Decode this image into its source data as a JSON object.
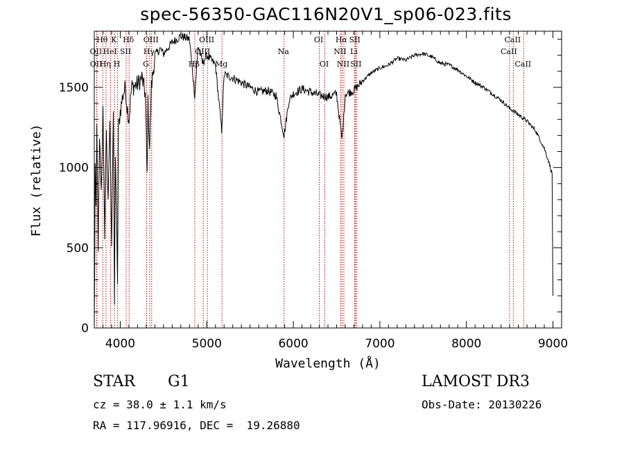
{
  "chart_data": {
    "type": "line",
    "title": "spec-56350-GAC116N20V1_sp06-023.fits",
    "xlabel": "Wavelength (Å)",
    "ylabel": "Flux (relative)",
    "xlim": [
      3700,
      9100
    ],
    "ylim": [
      0,
      1850
    ],
    "xticks": [
      4000,
      5000,
      6000,
      7000,
      8000,
      9000
    ],
    "yticks": [
      0,
      500,
      1000,
      1500
    ],
    "grid": false,
    "spectrum_anchors": [
      [
        3700,
        0
      ],
      [
        3705,
        350
      ],
      [
        3710,
        1050
      ],
      [
        3720,
        700
      ],
      [
        3730,
        1250
      ],
      [
        3745,
        450
      ],
      [
        3760,
        1200
      ],
      [
        3780,
        850
      ],
      [
        3800,
        1350
      ],
      [
        3820,
        600
      ],
      [
        3840,
        1250
      ],
      [
        3860,
        750
      ],
      [
        3880,
        1300
      ],
      [
        3900,
        550
      ],
      [
        3920,
        1350
      ],
      [
        3933,
        150
      ],
      [
        3945,
        1100
      ],
      [
        3968,
        300
      ],
      [
        3980,
        1250
      ],
      [
        4000,
        1350
      ],
      [
        4030,
        1450
      ],
      [
        4060,
        1500
      ],
      [
        4080,
        1380
      ],
      [
        4101,
        1300
      ],
      [
        4130,
        1500
      ],
      [
        4200,
        1520
      ],
      [
        4250,
        1560
      ],
      [
        4290,
        1460
      ],
      [
        4300,
        1200
      ],
      [
        4310,
        950
      ],
      [
        4320,
        1400
      ],
      [
        4340,
        1120
      ],
      [
        4360,
        1500
      ],
      [
        4400,
        1700
      ],
      [
        4460,
        1740
      ],
      [
        4500,
        1710
      ],
      [
        4600,
        1780
      ],
      [
        4700,
        1820
      ],
      [
        4800,
        1800
      ],
      [
        4861,
        1450
      ],
      [
        4900,
        1760
      ],
      [
        4950,
        1650
      ],
      [
        5000,
        1700
      ],
      [
        5100,
        1640
      ],
      [
        5172,
        1230
      ],
      [
        5200,
        1580
      ],
      [
        5300,
        1560
      ],
      [
        5400,
        1530
      ],
      [
        5500,
        1500
      ],
      [
        5600,
        1470
      ],
      [
        5700,
        1480
      ],
      [
        5800,
        1450
      ],
      [
        5893,
        1200
      ],
      [
        5950,
        1420
      ],
      [
        6000,
        1460
      ],
      [
        6100,
        1490
      ],
      [
        6200,
        1470
      ],
      [
        6300,
        1450
      ],
      [
        6400,
        1440
      ],
      [
        6500,
        1460
      ],
      [
        6563,
        1170
      ],
      [
        6600,
        1460
      ],
      [
        6700,
        1480
      ],
      [
        6800,
        1540
      ],
      [
        6900,
        1590
      ],
      [
        7000,
        1620
      ],
      [
        7100,
        1640
      ],
      [
        7200,
        1680
      ],
      [
        7300,
        1670
      ],
      [
        7400,
        1700
      ],
      [
        7500,
        1710
      ],
      [
        7600,
        1690
      ],
      [
        7700,
        1650
      ],
      [
        7800,
        1640
      ],
      [
        7900,
        1610
      ],
      [
        8000,
        1570
      ],
      [
        8100,
        1530
      ],
      [
        8200,
        1500
      ],
      [
        8300,
        1460
      ],
      [
        8400,
        1420
      ],
      [
        8500,
        1370
      ],
      [
        8600,
        1330
      ],
      [
        8700,
        1290
      ],
      [
        8800,
        1230
      ],
      [
        8900,
        1120
      ],
      [
        8950,
        1040
      ],
      [
        8990,
        960
      ],
      [
        9000,
        200
      ]
    ],
    "lines": [
      {
        "label": "Hθ",
        "wavelength": 3798,
        "row": 1
      },
      {
        "label": "OII",
        "wavelength": 3727,
        "row": 2
      },
      {
        "label": "OII",
        "wavelength": 3729,
        "row": 3
      },
      {
        "label": "Hη",
        "wavelength": 3835,
        "row": 3
      },
      {
        "label": "HeI",
        "wavelength": 3889,
        "row": 2
      },
      {
        "label": "K",
        "wavelength": 3934,
        "row": 1
      },
      {
        "label": "H",
        "wavelength": 3969,
        "row": 3
      },
      {
        "label": "SII",
        "wavelength": 4069,
        "row": 2
      },
      {
        "label": "Hδ",
        "wavelength": 4102,
        "row": 1
      },
      {
        "label": "OIII",
        "wavelength": 4363,
        "row": 1
      },
      {
        "label": "Hγ",
        "wavelength": 4341,
        "row": 2
      },
      {
        "label": "G",
        "wavelength": 4305,
        "row": 3
      },
      {
        "label": "Hβ",
        "wavelength": 4861,
        "row": 3
      },
      {
        "label": "OIII",
        "wavelength": 5007,
        "row": 1
      },
      {
        "label": "OIII",
        "wavelength": 4959,
        "row": 2
      },
      {
        "label": "Mg",
        "wavelength": 5175,
        "row": 3
      },
      {
        "label": "Na",
        "wavelength": 5893,
        "row": 2
      },
      {
        "label": "OI",
        "wavelength": 6300,
        "row": 1
      },
      {
        "label": "OI",
        "wavelength": 6364,
        "row": 3
      },
      {
        "label": "Hα",
        "wavelength": 6563,
        "row": 1
      },
      {
        "label": "NII",
        "wavelength": 6548,
        "row": 2
      },
      {
        "label": "NII",
        "wavelength": 6584,
        "row": 3
      },
      {
        "label": "SII",
        "wavelength": 6717,
        "row": 1
      },
      {
        "label": "Li",
        "wavelength": 6708,
        "row": 2
      },
      {
        "label": "SII",
        "wavelength": 6731,
        "row": 3
      },
      {
        "label": "CaII",
        "wavelength": 8542,
        "row": 1
      },
      {
        "label": "CaII",
        "wavelength": 8498,
        "row": 2
      },
      {
        "label": "CaII",
        "wavelength": 8662,
        "row": 3
      }
    ]
  },
  "info": {
    "class": "STAR",
    "subclass": "G1",
    "survey": "LAMOST DR3",
    "redshift": "cz = 38.0 ± 1.1 km/s",
    "obs_date": "Obs-Date: 20130226",
    "coords": "RA = 117.96916, DEC =  19.26880"
  },
  "colors": {
    "line_marker": "#c00000",
    "spectrum": "#000000"
  }
}
